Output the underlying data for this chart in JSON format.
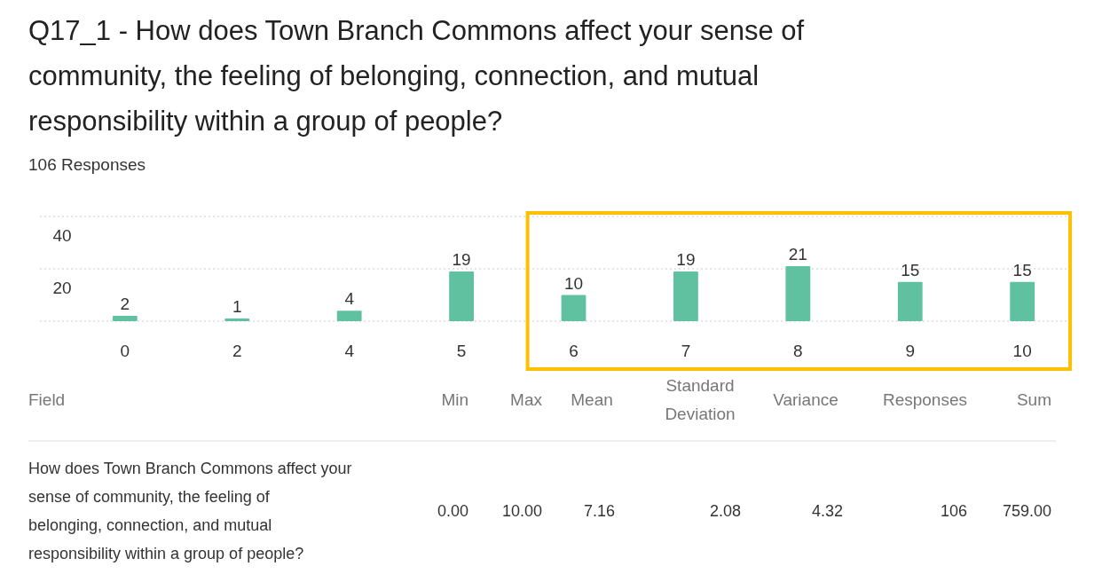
{
  "chart_data": {
    "type": "bar",
    "title": "Q17_1 - How does Town Branch Commons affect your sense of community, the feeling of belonging, connection, and mutual responsibility within a group of people?",
    "subtitle": "106 Responses",
    "categories": [
      "0",
      "2",
      "4",
      "5",
      "6",
      "7",
      "8",
      "9",
      "10"
    ],
    "values": [
      2,
      1,
      4,
      19,
      10,
      19,
      21,
      15,
      15
    ],
    "color": "#5fc1a0",
    "ylim": [
      0,
      40
    ],
    "yticks": [
      {
        "value": 0,
        "label": null
      },
      20,
      40
    ],
    "grid": "y",
    "data_labels": true,
    "annotations": [
      "Field",
      "Min",
      "Max",
      "Mean",
      "Standard Deviation",
      "Variance",
      "Responses",
      "Sum",
      "How does Town Branch Commons affect your sense of community, the feeling of belonging, connection, and mutual responsibility within a group of people?",
      "0.00",
      "10.00",
      "7.16",
      "2.08",
      "4.32",
      "106",
      "759.00"
    ]
  }
}
